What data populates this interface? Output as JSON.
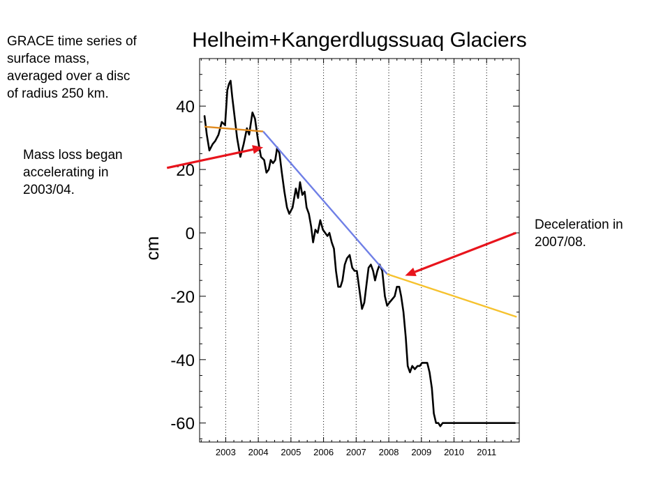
{
  "annotations": {
    "top": "GRACE time series of\nsurface mass,\naveraged over a disc\nof radius 250 km.",
    "left": "Mass loss began\naccelerating in\n2003/04.",
    "right": "Deceleration in\n2007/08."
  },
  "colors": {
    "series": "#000000",
    "trend_2002_2004": "#e08a1e",
    "trend_2004_2008": "#6f7fe6",
    "trend_2008_2012": "#f6c22e",
    "arrow": "#e8141c"
  },
  "chart_data": {
    "type": "line",
    "title": "Helheim+Kangerdlugssuaq Glaciers",
    "xlabel": "",
    "ylabel": "cm",
    "xlim": [
      2002.2,
      2012.0
    ],
    "ylim": [
      -66,
      55
    ],
    "xticks": [
      2003,
      2004,
      2005,
      2006,
      2007,
      2008,
      2009,
      2010,
      2011
    ],
    "xtick_labels": [
      "2003",
      "2004",
      "2005",
      "2006",
      "2007",
      "2008",
      "2009",
      "2010",
      "2011"
    ],
    "yticks": [
      -60,
      -40,
      -20,
      0,
      20,
      40
    ],
    "ytick_labels": [
      "-60",
      "-40",
      "-20",
      "0",
      "20",
      "40"
    ],
    "vertical_grid": "dotted",
    "series": [
      {
        "x": [
          2002.35,
          2002.42,
          2002.5,
          2002.6,
          2002.68,
          2002.78,
          2002.88,
          2002.98,
          2003.05,
          2003.1,
          2003.15,
          2003.2,
          2003.28,
          2003.35,
          2003.45,
          2003.55,
          2003.65,
          2003.72,
          2003.82,
          2003.9,
          2003.98,
          2004.08,
          2004.18,
          2004.25,
          2004.32,
          2004.38,
          2004.45,
          2004.52,
          2004.58,
          2004.65,
          2004.72,
          2004.8,
          2004.88,
          2004.95,
          2005.05,
          2005.15,
          2005.22,
          2005.28,
          2005.35,
          2005.42,
          2005.48,
          2005.55,
          2005.62,
          2005.68,
          2005.75,
          2005.82,
          2005.9,
          2005.98,
          2006.05,
          2006.12,
          2006.18,
          2006.25,
          2006.32,
          2006.38,
          2006.45,
          2006.52,
          2006.58,
          2006.65,
          2006.72,
          2006.8,
          2006.88,
          2006.95,
          2007.02,
          2007.1,
          2007.18,
          2007.25,
          2007.32,
          2007.38,
          2007.45,
          2007.52,
          2007.58,
          2007.65,
          2007.72,
          2007.8,
          2007.88,
          2007.95,
          2008.02,
          2008.1,
          2008.18,
          2008.25,
          2008.32,
          2008.38,
          2008.45,
          2008.52,
          2008.58,
          2008.65,
          2008.72,
          2008.8,
          2008.88,
          2008.95,
          2009.02,
          2009.1,
          2009.18,
          2009.25,
          2009.32,
          2009.38,
          2009.45,
          2009.52,
          2009.58,
          2009.65,
          2009.72,
          2009.8,
          2009.88,
          2009.95,
          2010.02,
          2010.1,
          2010.18,
          2010.25,
          2010.32,
          2010.38,
          2010.45,
          2010.52,
          2010.58,
          2010.65,
          2010.72,
          2010.8,
          2010.88,
          2010.95,
          2011.02,
          2011.1,
          2011.18,
          2011.25,
          2011.32,
          2011.38,
          2011.45,
          2011.52,
          2011.58,
          2011.65,
          2011.72,
          2011.8,
          2011.88
        ],
        "y": [
          37,
          31,
          26,
          28,
          29,
          31,
          35,
          34,
          45,
          47,
          48,
          43,
          36,
          30,
          24,
          28,
          33,
          31,
          38,
          36,
          30,
          24,
          23,
          19,
          20,
          23,
          22,
          23,
          27,
          25,
          19,
          13,
          8,
          6,
          8,
          14,
          11,
          16,
          12,
          13,
          8,
          6,
          2,
          -3,
          1,
          0,
          4,
          1,
          0,
          -1,
          0,
          -3,
          -5,
          -12,
          -17,
          -17,
          -15,
          -10,
          -8,
          -7,
          -11,
          -12,
          -12,
          -18,
          -24,
          -22,
          -16,
          -11,
          -10,
          -12,
          -15,
          -12,
          -10,
          -12,
          -20,
          -23,
          -22,
          -21,
          -20,
          -17,
          -17,
          -20,
          -25,
          -33,
          -42,
          -44,
          -42,
          -43,
          -42,
          -42,
          -41,
          -41,
          -41,
          -44,
          -49,
          -57,
          -60,
          -60,
          -61,
          -60,
          -60,
          -60,
          -60,
          -60,
          -60,
          -60,
          -60,
          -60,
          -60,
          -60,
          -60,
          -60,
          -60,
          -60,
          -60,
          -60,
          -60,
          -60,
          -60,
          -60,
          -60,
          -60,
          -60,
          -60,
          -60,
          -60,
          -60,
          -60,
          -60,
          -60,
          -60
        ]
      }
    ],
    "trend_lines": [
      {
        "x": [
          2002.35,
          2004.15
        ],
        "y": [
          33.5,
          32.0
        ]
      },
      {
        "x": [
          2004.15,
          2007.95
        ],
        "y": [
          32.0,
          -13.0
        ]
      },
      {
        "x": [
          2007.95,
          2011.92
        ],
        "y": [
          -13.0,
          -26.5
        ]
      }
    ],
    "arrows": [
      {
        "from": [
          2001.2,
          20.5
        ],
        "to": [
          2004.15,
          27.0
        ]
      },
      {
        "from": [
          2011.9,
          0.0
        ],
        "to": [
          2008.5,
          -13.5
        ]
      }
    ]
  }
}
